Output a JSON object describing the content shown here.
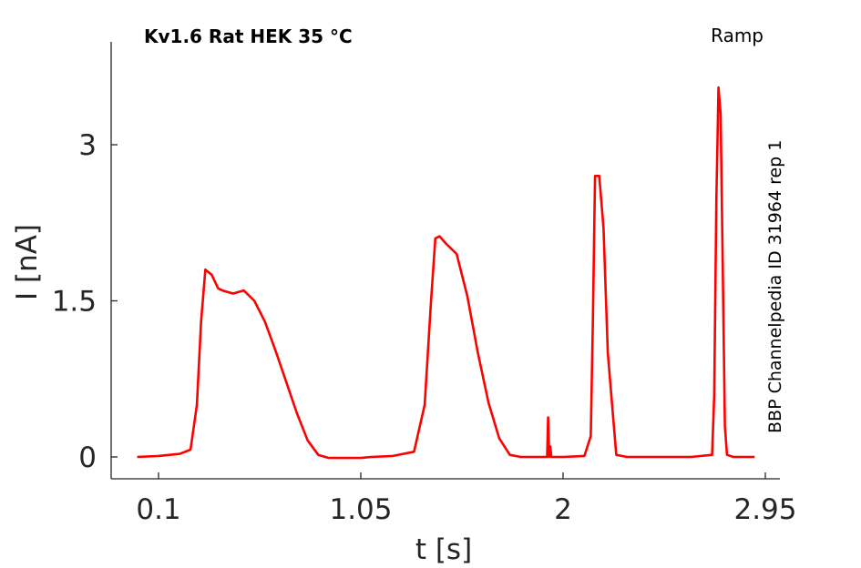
{
  "chart_data": {
    "type": "line",
    "title": "Kv1.6  Rat  HEK  35 °C",
    "protocol_label": "Ramp",
    "side_label": "BBP Channelpedia ID 31964 rep 1",
    "xlabel": "t [s]",
    "ylabel": "I [nA]",
    "xlim": [
      -0.1,
      3.0
    ],
    "ylim": [
      -0.12,
      3.9
    ],
    "xticks": [
      0.1,
      1.05,
      2,
      2.95
    ],
    "xtick_labels": [
      "0.1",
      "1.05",
      "2",
      "2.95"
    ],
    "yticks": [
      0,
      1.5,
      3
    ],
    "ytick_labels": [
      "0",
      "1.5",
      "3"
    ],
    "grid": false,
    "series": [
      {
        "color": "#ff0000",
        "x": [
          0.0,
          0.1,
          0.2,
          0.25,
          0.28,
          0.3,
          0.32,
          0.35,
          0.38,
          0.4,
          0.45,
          0.5,
          0.55,
          0.6,
          0.65,
          0.7,
          0.75,
          0.8,
          0.85,
          0.9,
          0.95,
          1.0,
          1.05,
          1.1,
          1.2,
          1.3,
          1.35,
          1.38,
          1.4,
          1.42,
          1.45,
          1.5,
          1.55,
          1.6,
          1.65,
          1.7,
          1.75,
          1.8,
          1.9,
          1.925,
          1.93,
          1.935,
          1.94,
          1.945,
          1.95,
          2.0,
          2.1,
          2.13,
          2.14,
          2.15,
          2.17,
          2.19,
          2.21,
          2.25,
          2.3,
          2.6,
          2.7,
          2.71,
          2.72,
          2.73,
          2.74,
          2.75,
          2.76,
          2.77,
          2.8,
          2.9
        ],
        "y": [
          0.0,
          0.01,
          0.03,
          0.07,
          0.5,
          1.3,
          1.8,
          1.75,
          1.62,
          1.6,
          1.57,
          1.6,
          1.5,
          1.3,
          1.02,
          0.72,
          0.42,
          0.16,
          0.02,
          -0.01,
          -0.01,
          -0.01,
          -0.01,
          0.0,
          0.01,
          0.05,
          0.5,
          1.5,
          2.1,
          2.12,
          2.05,
          1.95,
          1.55,
          1.0,
          0.52,
          0.18,
          0.02,
          0.0,
          0.0,
          0.0,
          0.38,
          0.0,
          0.1,
          0.0,
          0.0,
          0.0,
          0.01,
          0.2,
          1.3,
          2.7,
          2.7,
          2.2,
          1.0,
          0.02,
          0.0,
          0.0,
          0.02,
          0.6,
          2.5,
          3.55,
          3.3,
          1.8,
          0.3,
          0.02,
          0.0,
          0.0
        ]
      }
    ]
  }
}
